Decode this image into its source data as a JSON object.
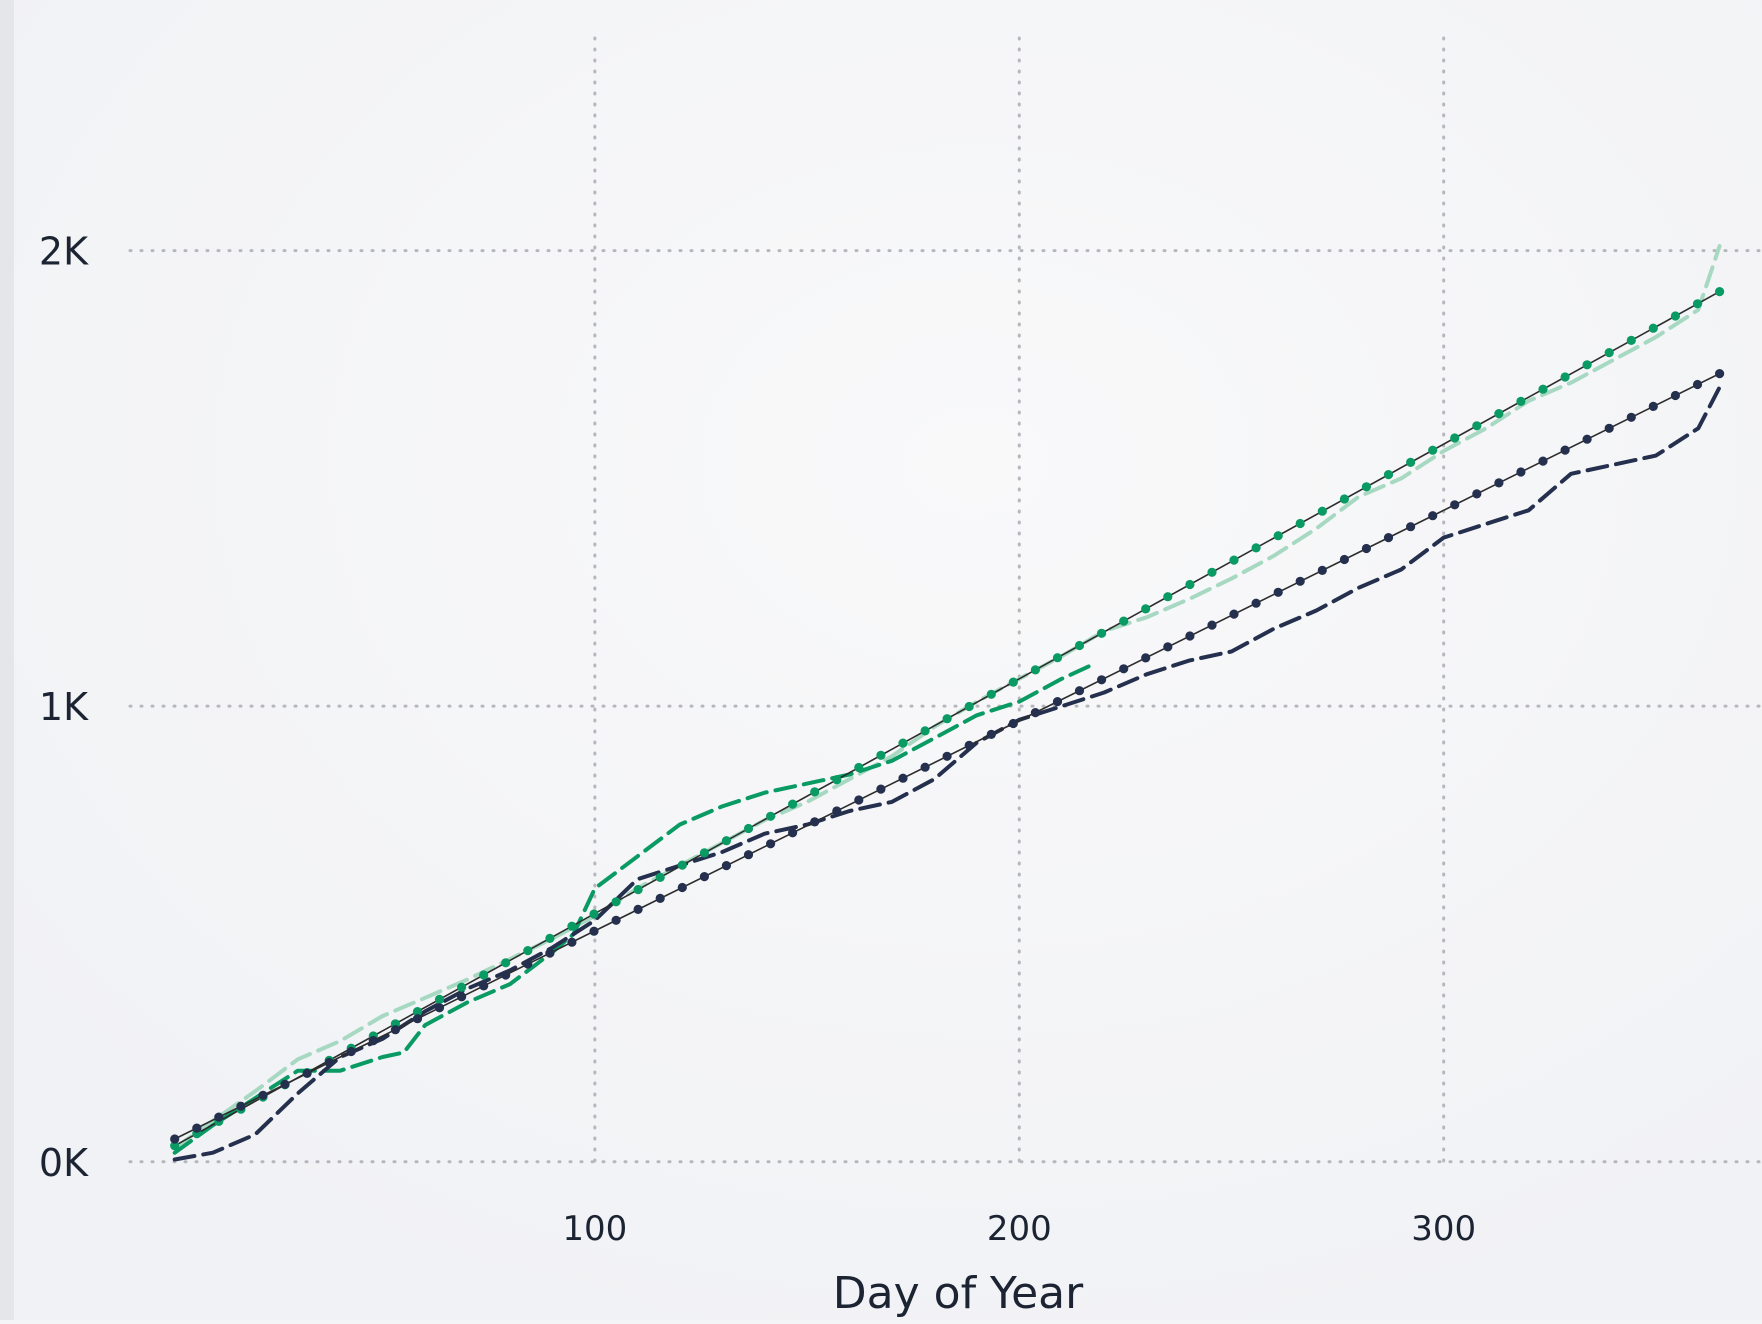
{
  "chart_data": {
    "type": "line",
    "title": "",
    "xlabel": "Day of Year",
    "ylabel": "",
    "xlim": [
      -10,
      375
    ],
    "ylim": [
      -40,
      2550
    ],
    "x_ticks": [
      100,
      200,
      300
    ],
    "x_tick_labels": [
      "100",
      "200",
      "300"
    ],
    "y_ticks": [
      0,
      1000,
      2000
    ],
    "y_tick_labels": [
      "0K",
      "1K",
      "2K"
    ],
    "grid": true,
    "legend": "none",
    "colors": {
      "green": "#0a9a63",
      "green_light": "#a6d8c2",
      "navy": "#25304f",
      "trend": "#2c2c2c",
      "grid": "#b5b7bc"
    },
    "series": [
      {
        "role": "green-cumulative-light",
        "style": "dashed",
        "color": "#a6d8c2",
        "x": [
          1,
          10,
          20,
          30,
          40,
          50,
          60,
          70,
          80,
          90,
          100,
          110,
          120,
          130,
          140,
          150,
          160,
          170,
          180,
          190,
          200,
          210,
          220,
          230,
          240,
          250,
          260,
          270,
          280,
          290,
          300,
          310,
          320,
          330,
          340,
          350,
          360,
          365
        ],
        "y": [
          30,
          90,
          155,
          225,
          265,
          320,
          360,
          400,
          445,
          490,
          540,
          600,
          650,
          700,
          750,
          790,
          840,
          890,
          955,
          1010,
          1060,
          1110,
          1165,
          1195,
          1235,
          1280,
          1330,
          1390,
          1460,
          1500,
          1560,
          1610,
          1670,
          1710,
          1760,
          1810,
          1870,
          2010
        ]
      },
      {
        "role": "green-cumulative",
        "style": "dashed",
        "color": "#0a9a63",
        "x": [
          1,
          10,
          20,
          30,
          40,
          50,
          55,
          60,
          70,
          80,
          90,
          95,
          100,
          110,
          120,
          130,
          140,
          150,
          160,
          170,
          180,
          190,
          200,
          210,
          217
        ],
        "y": [
          20,
          80,
          140,
          200,
          200,
          230,
          240,
          300,
          350,
          390,
          460,
          500,
          600,
          670,
          740,
          780,
          810,
          830,
          850,
          880,
          930,
          980,
          1010,
          1060,
          1090
        ]
      },
      {
        "role": "navy-cumulative",
        "style": "dashed",
        "color": "#25304f",
        "x": [
          1,
          10,
          20,
          30,
          40,
          50,
          60,
          70,
          80,
          90,
          100,
          110,
          120,
          130,
          140,
          150,
          160,
          170,
          180,
          190,
          200,
          210,
          220,
          230,
          240,
          250,
          260,
          270,
          280,
          290,
          300,
          310,
          320,
          330,
          340,
          350,
          360,
          365
        ],
        "y": [
          5,
          20,
          60,
          150,
          230,
          270,
          330,
          380,
          420,
          470,
          530,
          620,
          650,
          680,
          720,
          740,
          770,
          790,
          840,
          920,
          970,
          1000,
          1030,
          1070,
          1100,
          1120,
          1170,
          1210,
          1260,
          1300,
          1370,
          1400,
          1430,
          1510,
          1530,
          1550,
          1610,
          1700
        ]
      },
      {
        "role": "green-trend-markers",
        "style": "line+markers",
        "color": "#0a9a63",
        "x": [
          1,
          365
        ],
        "y": [
          35,
          1910
        ]
      },
      {
        "role": "navy-trend-markers",
        "style": "line+markers",
        "color": "#25304f",
        "x": [
          1,
          365
        ],
        "y": [
          50,
          1730
        ]
      }
    ]
  }
}
